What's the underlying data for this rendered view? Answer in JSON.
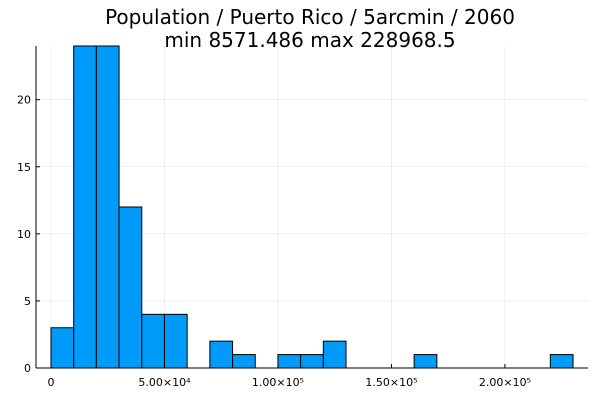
{
  "chart_data": {
    "type": "bar",
    "title_line1": "Population / Puerto Rico / 5arcmin / 2060",
    "title_line2": "min 8571.486  max 228968.5",
    "xlabel": "",
    "ylabel": "",
    "bin_width": 10000,
    "bins": [
      {
        "start": 0,
        "end": 10000,
        "count": 3
      },
      {
        "start": 10000,
        "end": 20000,
        "count": 24
      },
      {
        "start": 20000,
        "end": 30000,
        "count": 24
      },
      {
        "start": 30000,
        "end": 40000,
        "count": 12
      },
      {
        "start": 40000,
        "end": 50000,
        "count": 4
      },
      {
        "start": 50000,
        "end": 60000,
        "count": 4
      },
      {
        "start": 70000,
        "end": 80000,
        "count": 2
      },
      {
        "start": 80000,
        "end": 90000,
        "count": 1
      },
      {
        "start": 100000,
        "end": 110000,
        "count": 1
      },
      {
        "start": 110000,
        "end": 120000,
        "count": 1
      },
      {
        "start": 120000,
        "end": 130000,
        "count": 2
      },
      {
        "start": 160000,
        "end": 170000,
        "count": 1
      },
      {
        "start": 220000,
        "end": 230000,
        "count": 1
      }
    ],
    "xlim": [
      -6600,
      236600
    ],
    "ylim": [
      0,
      24
    ],
    "x_ticks": [
      {
        "value": 0,
        "label": "0"
      },
      {
        "value": 50000,
        "label": "5.00×10⁴"
      },
      {
        "value": 100000,
        "label": "1.00×10⁵"
      },
      {
        "value": 150000,
        "label": "1.50×10⁵"
      },
      {
        "value": 200000,
        "label": "2.00×10⁵"
      }
    ],
    "y_ticks": [
      {
        "value": 0,
        "label": "0"
      },
      {
        "value": 5,
        "label": "5"
      },
      {
        "value": 10,
        "label": "10"
      },
      {
        "value": 15,
        "label": "15"
      },
      {
        "value": 20,
        "label": "20"
      }
    ],
    "bar_color": "#009af9",
    "grid": true,
    "legend": false
  }
}
